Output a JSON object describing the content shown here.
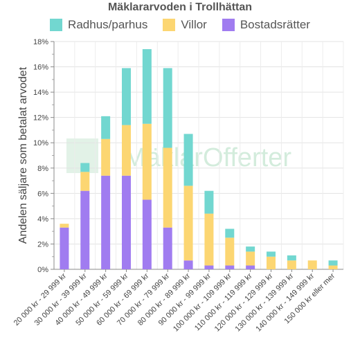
{
  "chart_data": {
    "type": "bar",
    "stacked": true,
    "title": "Mäklararvoden i Trollhättan",
    "ylabel": "Andelen säljare som betalat arvodet",
    "xlabel": "",
    "ylim": [
      0,
      18
    ],
    "yticks": [
      "0%",
      "2%",
      "4%",
      "6%",
      "8%",
      "10%",
      "12%",
      "14%",
      "16%",
      "18%"
    ],
    "grid": true,
    "legend_position": "top",
    "categories": [
      "20 000 kr - 29 999 kr",
      "30 000 kr - 39 999 kr",
      "40 000 kr - 49 999 kr",
      "50 000 kr - 59 999 kr",
      "60 000 kr - 69 999 kr",
      "70 000 kr - 79 999 kr",
      "80 000 kr - 89 999 kr",
      "90 000 kr - 99 999 kr",
      "100 000 kr - 109 999 kr",
      "110 000 kr - 119 999 kr",
      "120 000 kr - 129 999 kr",
      "130 000 kr - 139 999 kr",
      "140 000 kr - 149 999 kr",
      "150 000 kr eller mer"
    ],
    "series": [
      {
        "name": "Bostadsrätter",
        "color": "#a07cf0",
        "values": [
          3.3,
          6.2,
          7.4,
          7.4,
          5.5,
          3.3,
          0.7,
          0.3,
          0.3,
          0.3,
          0,
          0,
          0,
          0
        ]
      },
      {
        "name": "Villor",
        "color": "#fcd672",
        "values": [
          0.3,
          1.5,
          2.9,
          4.0,
          6.0,
          6.3,
          5.9,
          4.1,
          2.2,
          1.1,
          1.0,
          0.7,
          0.7,
          0.3
        ]
      },
      {
        "name": "Radhus/parhus",
        "color": "#72d7d0",
        "values": [
          0,
          0.7,
          1.8,
          4.5,
          5.9,
          6.3,
          4.1,
          1.8,
          0.7,
          0.4,
          0.4,
          0.4,
          0,
          0.4
        ]
      }
    ],
    "legend_order": [
      "Radhus/parhus",
      "Villor",
      "Bostadsrätter"
    ],
    "watermark": "MäklarOfferter"
  }
}
